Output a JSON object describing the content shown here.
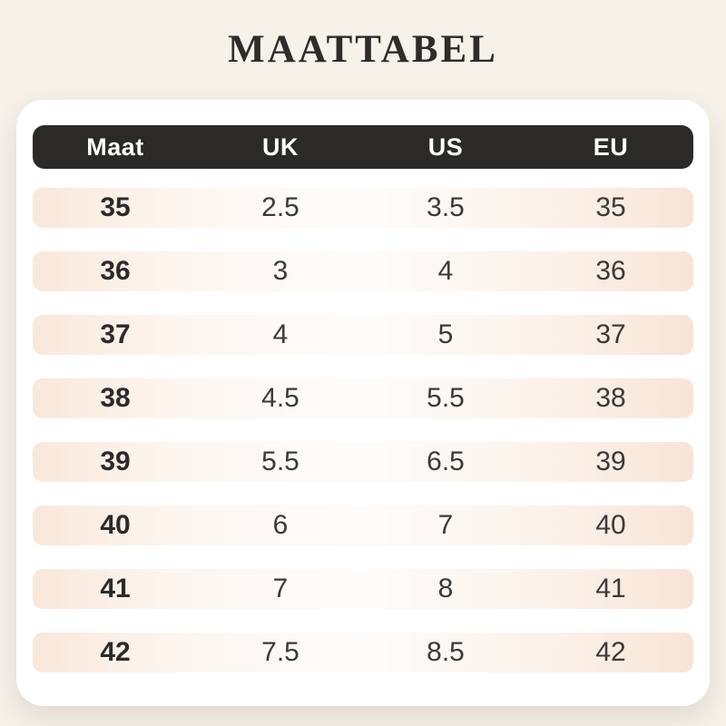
{
  "title": "MAATTABEL",
  "table": {
    "headers": [
      "Maat",
      "UK",
      "US",
      "EU"
    ],
    "rows": [
      [
        "35",
        "2.5",
        "3.5",
        "35"
      ],
      [
        "36",
        "3",
        "4",
        "36"
      ],
      [
        "37",
        "4",
        "5",
        "37"
      ],
      [
        "38",
        "4.5",
        "5.5",
        "38"
      ],
      [
        "39",
        "5.5",
        "6.5",
        "39"
      ],
      [
        "40",
        "6",
        "7",
        "40"
      ],
      [
        "41",
        "7",
        "8",
        "41"
      ],
      [
        "42",
        "7.5",
        "8.5",
        "42"
      ]
    ]
  },
  "colors": {
    "page_background": "#f6f1e9",
    "card_background": "#ffffff",
    "header_background": "#2b2a28",
    "header_text": "#ffffff",
    "row_gradient_edge_left": "#f9e8da",
    "row_gradient_center": "#fefcfa",
    "row_gradient_edge_right": "#f8e4d6",
    "title_text": "#2d2c2a",
    "cell_text": "#3a3a3a"
  },
  "chart_data": {
    "type": "table",
    "title": "MAATTABEL",
    "columns": [
      "Maat",
      "UK",
      "US",
      "EU"
    ],
    "rows": [
      [
        "35",
        "2.5",
        "3.5",
        "35"
      ],
      [
        "36",
        "3",
        "4",
        "36"
      ],
      [
        "37",
        "4",
        "5",
        "37"
      ],
      [
        "38",
        "4.5",
        "5.5",
        "38"
      ],
      [
        "39",
        "5.5",
        "6.5",
        "39"
      ],
      [
        "40",
        "6",
        "7",
        "40"
      ],
      [
        "41",
        "7",
        "8",
        "41"
      ],
      [
        "42",
        "7.5",
        "8.5",
        "42"
      ]
    ]
  }
}
